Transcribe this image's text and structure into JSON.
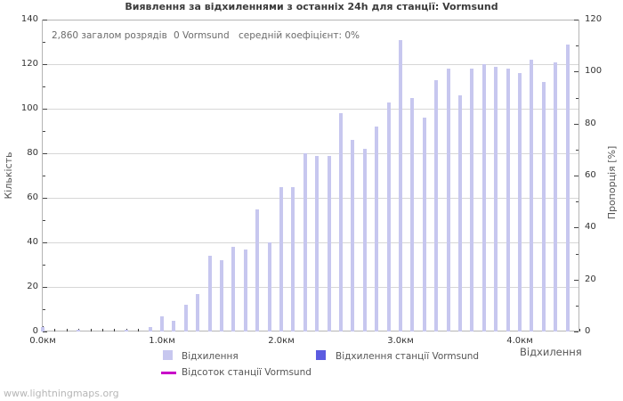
{
  "title": "Виявлення за відхиленнями з останніх 24h для станції: Vormsund",
  "info": {
    "total_strokes": "2,860 загалом розрядів",
    "station_strokes": "0 Vormsund",
    "avg_coefficient": "середній коефіцієнт: 0%"
  },
  "watermark": "www.lightningmaps.org",
  "colors": {
    "deviation_bar": "#c7c7ef",
    "station_bar": "#5b5be0",
    "percent_line": "#c800c8",
    "grid": "#d7d7d7",
    "spine": "#b5b5b5"
  },
  "legend": {
    "items": [
      {
        "swatch": "square",
        "color": "#c7c7ef",
        "label": "Відхилення"
      },
      {
        "swatch": "square",
        "color": "#5b5be0",
        "label": "Відхилення станції Vormsund"
      },
      {
        "swatch": "line",
        "color": "#c800c8",
        "label": "Відсоток станції Vormsund"
      }
    ]
  },
  "chart_data": {
    "type": "bar",
    "title": "Виявлення за відхиленнями з останніх 24h для станції: Vormsund",
    "xlabel": "Відхилення",
    "ylabel_left": "Кількість",
    "ylabel_right": "Пропорція [%]",
    "grid": true,
    "axes": {
      "x": {
        "min": 0,
        "max": 4.5,
        "major_step": 1.0,
        "minor_step": 0.1,
        "major_labels": [
          "0.0км",
          "1.0км",
          "2.0км",
          "3.0км",
          "4.0км"
        ]
      },
      "left": {
        "min": 0,
        "max": 140,
        "major_step": 20,
        "minor_step": 10,
        "major_labels": [
          "0",
          "20",
          "40",
          "60",
          "80",
          "100",
          "120",
          "140"
        ]
      },
      "right": {
        "min": 0,
        "max": 120,
        "major_step": 20,
        "minor_step": 10,
        "major_labels": [
          "0",
          "20",
          "40",
          "60",
          "80",
          "100",
          "120"
        ]
      }
    },
    "series": [
      {
        "name": "Відхилення",
        "type": "bar",
        "color": "#c7c7ef",
        "axis": "left",
        "x": [
          0.0,
          0.1,
          0.2,
          0.3,
          0.4,
          0.5,
          0.6,
          0.7,
          0.8,
          0.9,
          1.0,
          1.1,
          1.2,
          1.3,
          1.4,
          1.5,
          1.6,
          1.7,
          1.8,
          1.9,
          2.0,
          2.1,
          2.2,
          2.3,
          2.4,
          2.5,
          2.6,
          2.7,
          2.8,
          2.9,
          3.0,
          3.1,
          3.2,
          3.3,
          3.4,
          3.5,
          3.6,
          3.7,
          3.8,
          3.9,
          4.0,
          4.1,
          4.2,
          4.3,
          4.4
        ],
        "values": [
          2,
          0,
          0,
          1,
          0,
          0,
          0,
          1,
          0,
          2,
          7,
          5,
          12,
          17,
          34,
          32,
          38,
          37,
          55,
          40,
          65,
          65,
          80,
          79,
          79,
          98,
          86,
          82,
          92,
          103,
          131,
          105,
          96,
          113,
          118,
          106,
          118,
          120,
          119,
          118,
          116,
          122,
          112,
          121,
          129
        ]
      },
      {
        "name": "Відхилення станції Vormsund",
        "type": "bar",
        "color": "#5b5be0",
        "axis": "left",
        "x": [],
        "values": []
      },
      {
        "name": "Відсоток станції Vormsund",
        "type": "line",
        "color": "#c800c8",
        "axis": "right",
        "x": [],
        "values": []
      }
    ]
  }
}
